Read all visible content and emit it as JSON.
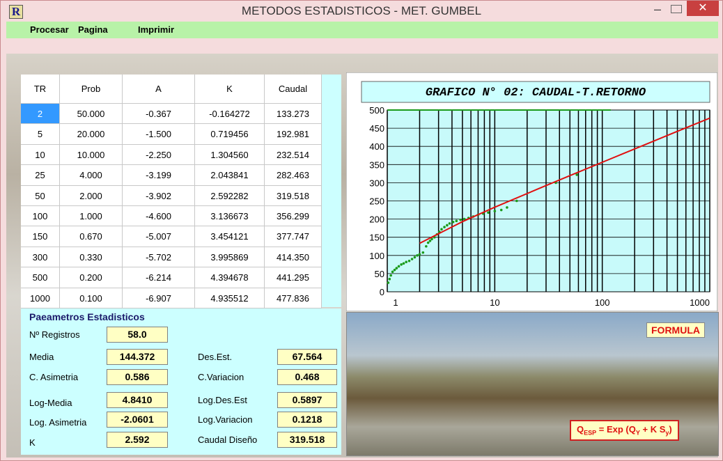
{
  "window": {
    "icon": "R",
    "title": "METODOS ESTADISTICOS - MET. GUMBEL"
  },
  "menu": [
    "Procesar",
    "Pagina",
    "Imprimir"
  ],
  "table": {
    "headers": [
      "TR",
      "Prob",
      "A",
      "K",
      "Caudal"
    ],
    "rows": [
      [
        "2",
        "50.000",
        "-0.367",
        "-0.164272",
        "133.273"
      ],
      [
        "5",
        "20.000",
        "-1.500",
        "0.719456",
        "192.981"
      ],
      [
        "10",
        "10.000",
        "-2.250",
        "1.304560",
        "232.514"
      ],
      [
        "25",
        "4.000",
        "-3.199",
        "2.043841",
        "282.463"
      ],
      [
        "50",
        "2.000",
        "-3.902",
        "2.592282",
        "319.518"
      ],
      [
        "100",
        "1.000",
        "-4.600",
        "3.136673",
        "356.299"
      ],
      [
        "150",
        "0.670",
        "-5.007",
        "3.454121",
        "377.747"
      ],
      [
        "300",
        "0.330",
        "-5.702",
        "3.995869",
        "414.350"
      ],
      [
        "500",
        "0.200",
        "-6.214",
        "4.394678",
        "441.295"
      ],
      [
        "1000",
        "0.100",
        "-6.907",
        "4.935512",
        "477.836"
      ]
    ]
  },
  "stats": {
    "title": "Paeametros Estadisticos",
    "fields": [
      {
        "label": "Nº Registros",
        "value": "58.0"
      },
      {
        "label": "Media",
        "value": "144.372"
      },
      {
        "label": "Des.Est.",
        "value": "67.564"
      },
      {
        "label": "C. Asimetria",
        "value": "0.586"
      },
      {
        "label": "C.Variacion",
        "value": "0.468"
      },
      {
        "label": "Log-Media",
        "value": "4.8410"
      },
      {
        "label": "Log.Des.Est",
        "value": "0.5897"
      },
      {
        "label": "Log. Asimetria",
        "value": "-2.0601"
      },
      {
        "label": "Log.Variacion",
        "value": "0.1218"
      },
      {
        "label": "K",
        "value": "2.592"
      },
      {
        "label": "Caudal Diseño",
        "value": "319.518"
      }
    ]
  },
  "photo": {
    "button": "FORMULA",
    "formula": [
      "Q",
      "ESP",
      " = Exp (Q",
      "Y",
      " + K S",
      "y",
      ")"
    ]
  },
  "chart_data": {
    "type": "line",
    "title": "GRAFICO N° 02: CAUDAL-T.RETORNO",
    "xscale": "log",
    "xlim": [
      1,
      1000
    ],
    "xticks": [
      1,
      10,
      100,
      1000
    ],
    "xgrid": [
      1,
      2,
      3,
      4,
      5,
      6,
      7,
      8,
      9,
      10,
      20,
      30,
      40,
      50,
      60,
      70,
      80,
      90,
      100,
      200,
      300,
      400,
      500,
      600,
      700,
      800,
      900,
      1000
    ],
    "ylim": [
      0,
      500
    ],
    "yticks": [
      0,
      50,
      100,
      150,
      200,
      250,
      300,
      350,
      400,
      450,
      500
    ],
    "grid": true,
    "series": [
      {
        "style": "points",
        "color": "#1a9a1a",
        "x": [
          1.02,
          1.05,
          1.08,
          1.12,
          1.17,
          1.22,
          1.28,
          1.35,
          1.42,
          1.5,
          1.6,
          1.7,
          1.8,
          1.9,
          2.0,
          2.15,
          2.3,
          2.4,
          2.5,
          2.6,
          2.75,
          2.9,
          3.05,
          3.2,
          3.4,
          3.6,
          3.8,
          4.1,
          4.4,
          4.8,
          5.2,
          5.7,
          6.3,
          7,
          7.8,
          8.7,
          10,
          11.5,
          13,
          16,
          37,
          58
        ],
        "values": [
          25,
          35,
          45,
          55,
          60,
          65,
          70,
          75,
          78,
          82,
          85,
          90,
          95,
          100,
          103,
          108,
          125,
          135,
          140,
          145,
          150,
          158,
          165,
          172,
          178,
          183,
          188,
          192,
          195,
          198,
          200,
          203,
          207,
          212,
          215,
          218,
          222,
          225,
          232,
          250,
          300,
          322
        ]
      },
      {
        "style": "line",
        "color": "#e01010",
        "x": [
          2,
          5,
          10,
          25,
          50,
          100,
          150,
          300,
          500,
          1000
        ],
        "values": [
          133.273,
          192.981,
          232.514,
          282.463,
          319.518,
          356.299,
          377.747,
          414.35,
          441.295,
          477.836
        ]
      },
      {
        "style": "line",
        "color": "#1a9a1a",
        "x": [
          1,
          120
        ],
        "values": [
          500,
          500
        ]
      }
    ]
  }
}
